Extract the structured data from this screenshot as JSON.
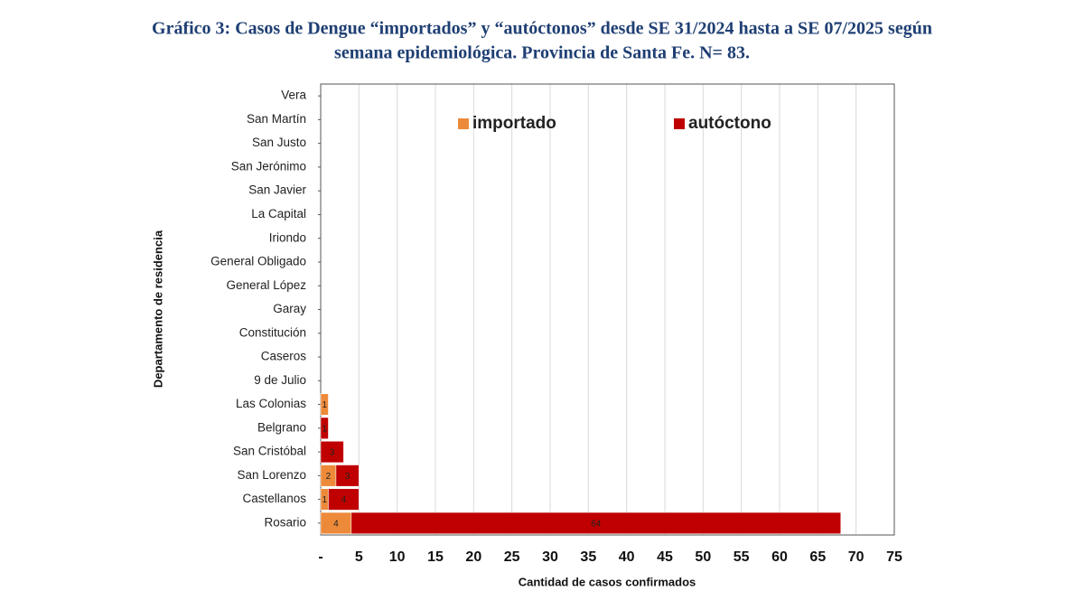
{
  "chart_data": {
    "type": "stacked_barh",
    "title": "Gráfico 3: Casos de Dengue “importados” y “autóctonos” desde SE 31/2024 hasta a SE 07/2025 según",
    "subtitle": "semana epidemiológica. Provincia de Santa Fe. N= 83.",
    "xlabel": "Cantidad de casos confirmados",
    "ylabel": "Departamento de residencia",
    "categories": [
      "Vera",
      "San Martín",
      "San Justo",
      "San Jerónimo",
      "San Javier",
      "La Capital",
      "Iriondo",
      "General Obligado",
      "General López",
      "Garay",
      "Constitución",
      "Caseros",
      "9 de Julio",
      "Las Colonias",
      "Belgrano",
      "San Cristóbal",
      "San Lorenzo",
      "Castellanos",
      "Rosario"
    ],
    "series": [
      {
        "name": "importado",
        "color": "#ed8a3a",
        "values": [
          null,
          null,
          null,
          null,
          null,
          null,
          null,
          null,
          null,
          null,
          null,
          null,
          null,
          1,
          null,
          null,
          2,
          1,
          4
        ]
      },
      {
        "name": "autóctono",
        "color": "#c00000",
        "values": [
          null,
          null,
          null,
          null,
          null,
          null,
          null,
          null,
          null,
          null,
          null,
          null,
          null,
          null,
          1,
          3,
          3,
          4,
          64
        ]
      }
    ],
    "xlim": [
      0,
      75
    ],
    "xticks": [
      {
        "value": 0,
        "label": "-"
      },
      5,
      10,
      15,
      20,
      25,
      30,
      35,
      40,
      45,
      50,
      55,
      60,
      65,
      70,
      75
    ],
    "grid": true,
    "legend": "upper center"
  }
}
